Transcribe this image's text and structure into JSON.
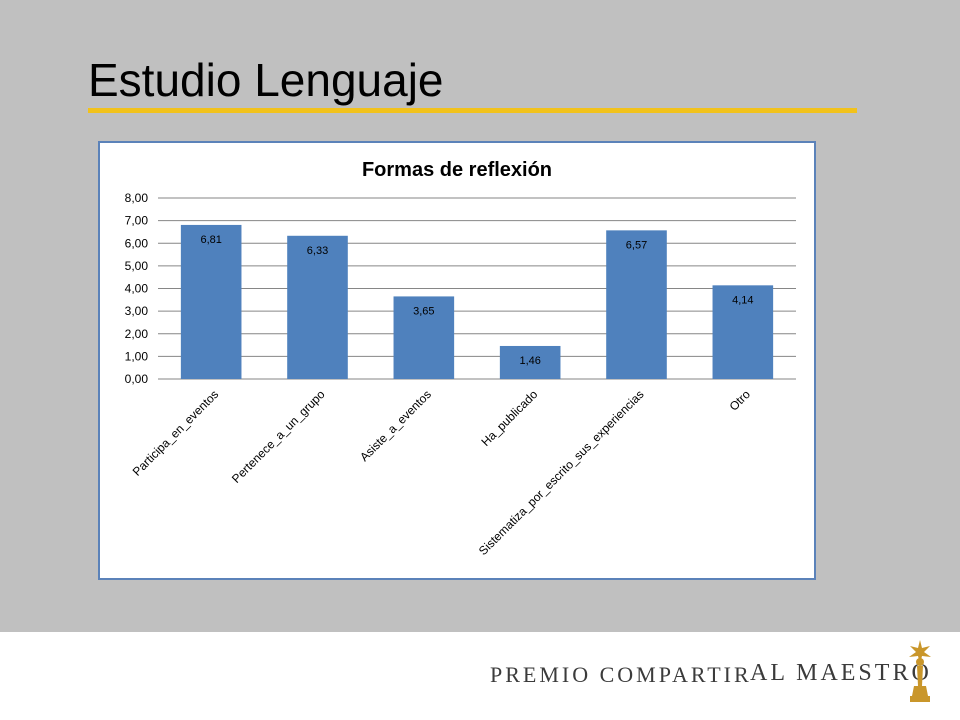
{
  "slide": {
    "title": "Estudio Lenguaje"
  },
  "footer": {
    "brand_part1": "PREMIO COMPARTIR",
    "brand_part2": "AL MAESTRO",
    "icon": "award-statuette-icon"
  },
  "colors": {
    "background": "#c0c0c0",
    "accent_rule": "#f2c21b",
    "bar": "#4f81bd",
    "chart_border": "#5b82b9"
  },
  "chart_data": {
    "type": "bar",
    "title": "Formas de reflexión",
    "categories": [
      "Participa_en_eventos",
      "Pertenece_a_un_grupo",
      "Asiste_a_eventos",
      "Ha_publicado",
      "Sistematiza_por_escrito_sus_experiencias",
      "Otro"
    ],
    "values": [
      6.81,
      6.33,
      3.65,
      1.46,
      6.57,
      4.14
    ],
    "data_labels": [
      "6,81",
      "6,33",
      "3,65",
      "1,46",
      "6,57",
      "4,14"
    ],
    "y_ticks": [
      "0,00",
      "1,00",
      "2,00",
      "3,00",
      "4,00",
      "5,00",
      "6,00",
      "7,00",
      "8,00"
    ],
    "ylim": [
      0,
      8
    ],
    "grid": true,
    "legend": "none",
    "bar_color": "#4f81bd"
  }
}
